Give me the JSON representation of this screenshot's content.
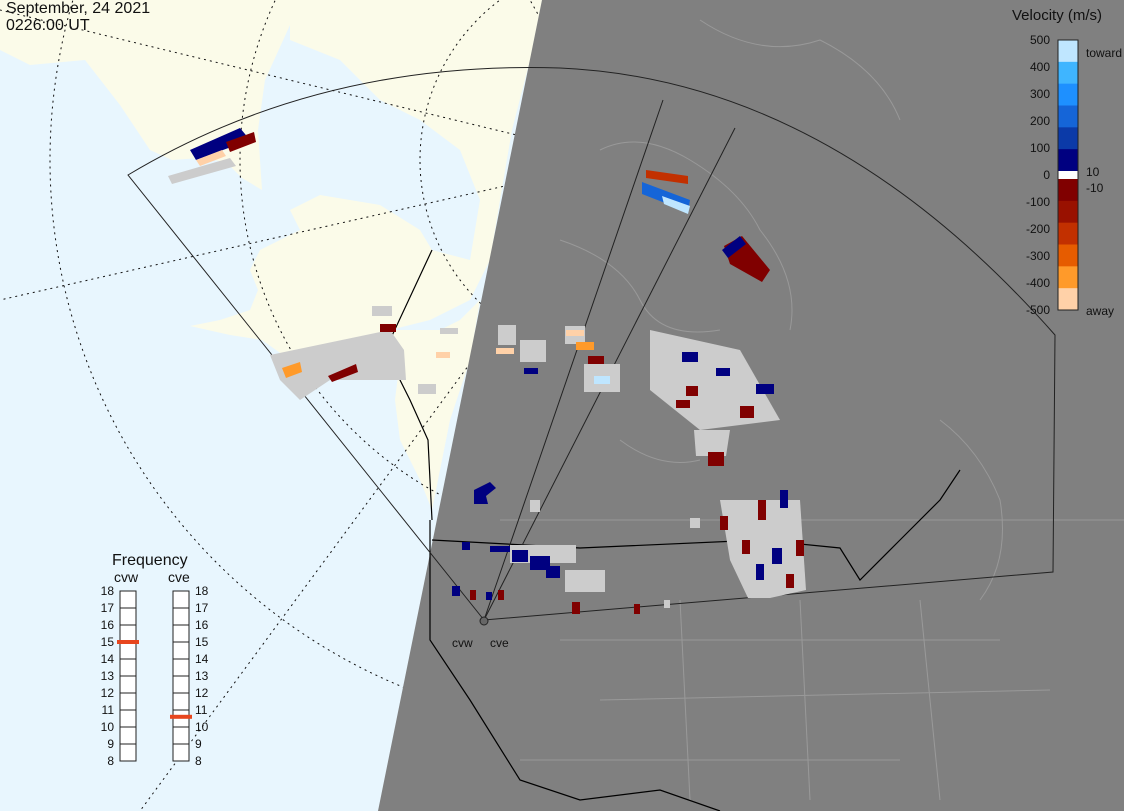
{
  "header": {
    "date": "September, 24 2021",
    "time": "0226:00 UT"
  },
  "colors": {
    "ocean": "#e8f6fe",
    "land": "#fbfbe9",
    "night": "#808080",
    "ground_scatter": "#cccccc"
  },
  "velocity_scale": {
    "title": "Velocity (m/s)",
    "ticks": [
      "500",
      "400",
      "300",
      "200",
      "100",
      "0",
      "-100",
      "-200",
      "-300",
      "-400",
      "-500"
    ],
    "inner_ticks": [
      "10",
      "-10"
    ],
    "toward_label": "toward",
    "away_label": "away",
    "colors_toward": [
      "#bfe6ff",
      "#3fb5ff",
      "#1e90ff",
      "#1565d8",
      "#0b3aa8",
      "#000080"
    ],
    "colors_away": [
      "#800000",
      "#991100",
      "#c23000",
      "#e65c00",
      "#ff9a2a",
      "#ffd1a8"
    ]
  },
  "frequency": {
    "title": "Frequency",
    "radars": [
      {
        "name": "cvw",
        "freq_mhz": 15
      },
      {
        "name": "cve",
        "freq_mhz": 10.6
      }
    ],
    "levels": [
      "18",
      "17",
      "16",
      "15",
      "14",
      "13",
      "12",
      "11",
      "10",
      "9",
      "8"
    ],
    "marker_color": "#e8461e"
  },
  "radars": [
    {
      "name": "cvw"
    },
    {
      "name": "cve"
    }
  ]
}
